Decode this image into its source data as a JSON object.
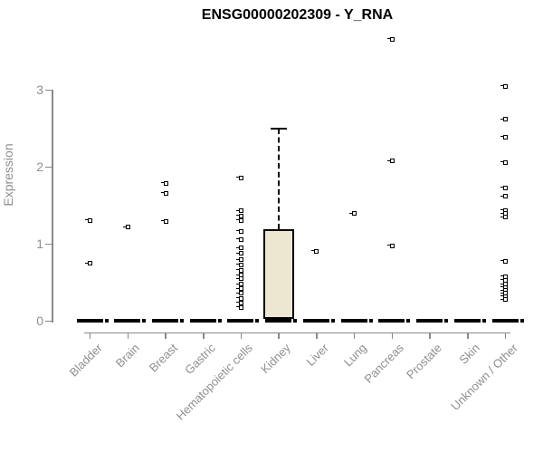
{
  "chart_data": {
    "type": "boxplot",
    "title": "ENSG00000202309 - Y_RNA",
    "ylabel": "Expression",
    "xlabel": "",
    "yticks": [
      0,
      1,
      2,
      3
    ],
    "ylim": [
      0,
      3.8
    ],
    "grid": false,
    "legend": false,
    "categories": [
      "Bladder",
      "Brain",
      "Breast",
      "Gastric",
      "Hematopoietic cells",
      "Kidney",
      "Liver",
      "Lung",
      "Pancreas",
      "Prostate",
      "Skin",
      "Unknown / Other"
    ],
    "boxes": [
      {
        "category": "Bladder",
        "q1": 0,
        "median": 0,
        "q3": 0,
        "whisker_low": 0,
        "whisker_high": 0,
        "outliers": [
          1.31,
          0.75
        ]
      },
      {
        "category": "Brain",
        "q1": 0,
        "median": 0,
        "q3": 0,
        "whisker_low": 0,
        "whisker_high": 0,
        "outliers": [
          1.22
        ]
      },
      {
        "category": "Breast",
        "q1": 0,
        "median": 0,
        "q3": 0,
        "whisker_low": 0,
        "whisker_high": 0,
        "outliers": [
          1.79,
          1.66,
          1.3
        ]
      },
      {
        "category": "Gastric",
        "q1": 0,
        "median": 0,
        "q3": 0,
        "whisker_low": 0,
        "whisker_high": 0,
        "outliers": []
      },
      {
        "category": "Hematopoietic cells",
        "q1": 0,
        "median": 0,
        "q3": 0,
        "whisker_low": 0,
        "whisker_high": 0,
        "outliers": [
          1.86,
          1.43,
          1.37,
          1.31,
          1.17,
          1.06,
          0.95,
          0.88,
          0.8,
          0.73,
          0.66,
          0.6,
          0.55,
          0.48,
          0.42,
          0.36,
          0.3,
          0.24,
          0.18
        ]
      },
      {
        "category": "Kidney",
        "q1": 0,
        "median": 0,
        "q3": 1.19,
        "whisker_low": 0,
        "whisker_high": 2.5,
        "outliers": []
      },
      {
        "category": "Liver",
        "q1": 0,
        "median": 0,
        "q3": 0,
        "whisker_low": 0,
        "whisker_high": 0,
        "outliers": [
          0.91
        ]
      },
      {
        "category": "Lung",
        "q1": 0,
        "median": 0,
        "q3": 0,
        "whisker_low": 0,
        "whisker_high": 0,
        "outliers": [
          1.4
        ]
      },
      {
        "category": "Pancreas",
        "q1": 0,
        "median": 0,
        "q3": 0,
        "whisker_low": 0,
        "whisker_high": 0,
        "outliers": [
          3.66,
          2.08,
          0.98
        ]
      },
      {
        "category": "Prostate",
        "q1": 0,
        "median": 0,
        "q3": 0,
        "whisker_low": 0,
        "whisker_high": 0,
        "outliers": []
      },
      {
        "category": "Skin",
        "q1": 0,
        "median": 0,
        "q3": 0,
        "whisker_low": 0,
        "whisker_high": 0,
        "outliers": []
      },
      {
        "category": "Unknown / Other",
        "q1": 0,
        "median": 0,
        "q3": 0,
        "whisker_low": 0,
        "whisker_high": 0,
        "outliers": [
          3.05,
          2.62,
          2.39,
          2.06,
          1.73,
          1.62,
          1.44,
          1.4,
          1.35,
          0.78,
          0.58,
          0.53,
          0.48,
          0.44,
          0.4,
          0.36,
          0.32,
          0.28
        ]
      }
    ],
    "colors": {
      "box_fill": "#EDE7D1",
      "box_border": "#000000",
      "point": "#000000",
      "axis": "#8a8a8a",
      "tick_label": "#8f8f8f",
      "title": "#000000",
      "background": "#ffffff"
    }
  }
}
